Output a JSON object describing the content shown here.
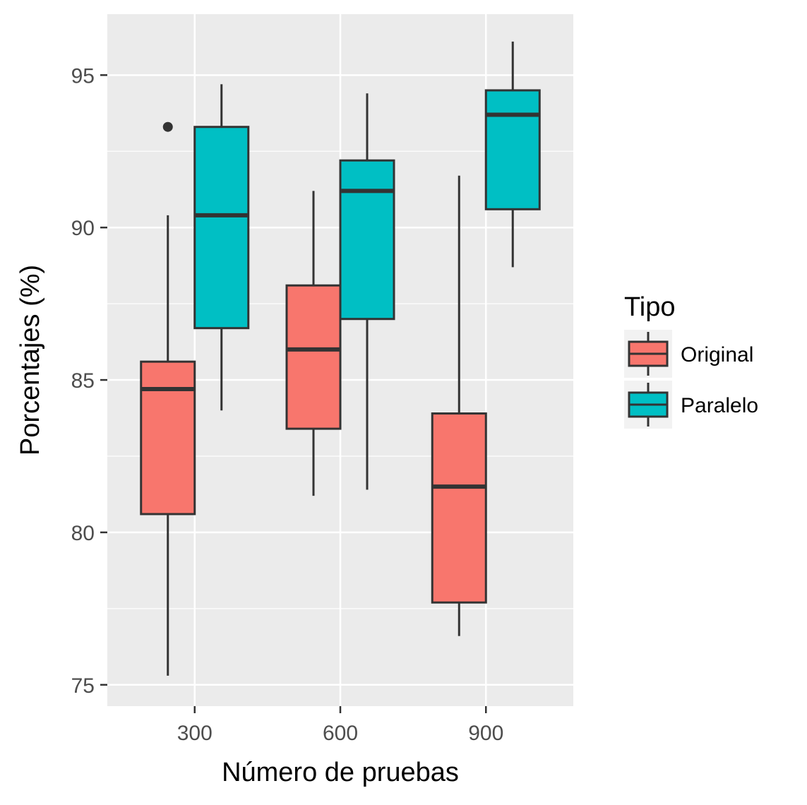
{
  "chart_data": {
    "type": "box",
    "xlabel": "Número de pruebas",
    "ylabel": "Porcentajes (%)",
    "categories": [
      "300",
      "600",
      "900"
    ],
    "ylim": [
      74.3,
      97.0
    ],
    "yticks": [
      75,
      80,
      85,
      90,
      95
    ],
    "ytick_labels": [
      "75",
      "80",
      "85",
      "90",
      "95"
    ],
    "grid": true,
    "legend": {
      "title": "Tipo",
      "position": "right"
    },
    "series": [
      {
        "name": "Original",
        "color": "#F8766D",
        "boxes": [
          {
            "category": "300",
            "min": 75.3,
            "q1": 80.6,
            "median": 84.7,
            "q3": 85.6,
            "max": 90.4,
            "outliers": [
              93.3
            ]
          },
          {
            "category": "600",
            "min": 81.2,
            "q1": 83.4,
            "median": 86.0,
            "q3": 88.1,
            "max": 91.2,
            "outliers": []
          },
          {
            "category": "900",
            "min": 76.6,
            "q1": 77.7,
            "median": 81.5,
            "q3": 83.9,
            "max": 91.7,
            "outliers": []
          }
        ]
      },
      {
        "name": "Paralelo",
        "color": "#00BFC4",
        "boxes": [
          {
            "category": "300",
            "min": 84.0,
            "q1": 86.7,
            "median": 90.4,
            "q3": 93.3,
            "max": 94.7,
            "outliers": []
          },
          {
            "category": "600",
            "min": 81.4,
            "q1": 87.0,
            "median": 91.2,
            "q3": 92.2,
            "max": 94.4,
            "outliers": []
          },
          {
            "category": "900",
            "min": 88.7,
            "q1": 90.6,
            "median": 93.7,
            "q3": 94.5,
            "max": 96.1,
            "outliers": []
          }
        ]
      }
    ]
  }
}
